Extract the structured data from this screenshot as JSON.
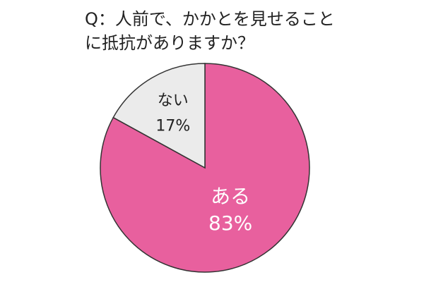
{
  "chart_data": {
    "type": "pie",
    "title": "Q：人前で、かかとを見せることに抵抗がありますか？",
    "categories": [
      "ある",
      "ない"
    ],
    "values": [
      83,
      17
    ],
    "value_labels": [
      "83%",
      "17%"
    ],
    "colors": [
      "#e8609e",
      "#ebebeb"
    ],
    "label_colors": [
      "#ffffff",
      "#222222"
    ]
  }
}
